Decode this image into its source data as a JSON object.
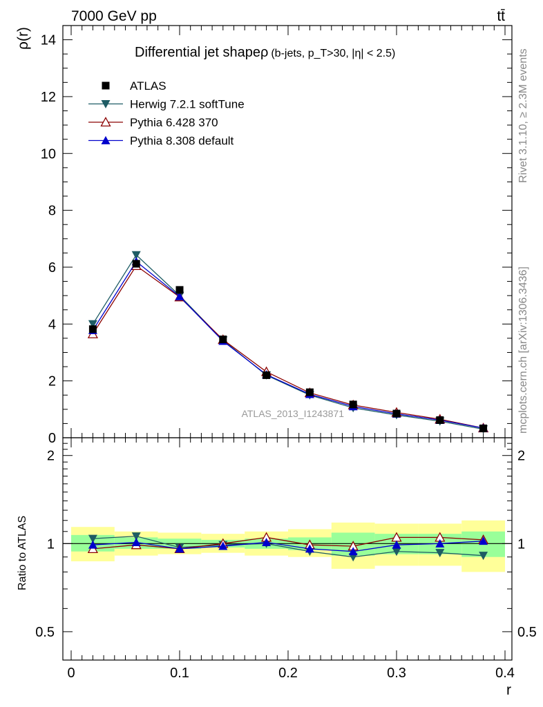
{
  "header": {
    "energy_label": "7000 GeV pp",
    "process_label": "tt̄",
    "rivet_label": "Rivet 3.1.10, ≥ 2.3M events",
    "mcplots_label": "mcplots.cern.ch [arXiv:1306.3436]",
    "analysis_label": "ATLAS_2013_I1243871"
  },
  "chart_data": [
    {
      "type": "scatter",
      "title": "Differential jet shapeρ",
      "title_detail": "(b-jets, p_T>30, |η| < 2.5)",
      "ylabel": "ρ(r)",
      "xlabel": "",
      "xlim": [
        0,
        0.4
      ],
      "ylim": [
        0,
        14.5
      ],
      "x_ticks": [],
      "y_ticks": [
        "0",
        "2",
        "4",
        "6",
        "8",
        "10",
        "12",
        "14"
      ],
      "legend_position": "top-left",
      "x": [
        0.02,
        0.06,
        0.1,
        0.14,
        0.18,
        0.22,
        0.26,
        0.3,
        0.34,
        0.38
      ],
      "series": [
        {
          "name": "ATLAS",
          "color": "#000000",
          "marker": "square",
          "values": [
            3.82,
            6.12,
            5.2,
            3.46,
            2.2,
            1.6,
            1.17,
            0.85,
            0.62,
            0.33
          ]
        },
        {
          "name": "Herwig 7.2.1 softTune",
          "color": "#1e5c64",
          "marker": "triangle-down",
          "values": [
            4.0,
            6.43,
            5.0,
            3.43,
            2.2,
            1.5,
            1.05,
            0.8,
            0.58,
            0.3
          ]
        },
        {
          "name": "Pythia 6.428 370",
          "color": "#8b0000",
          "marker": "triangle-up-open",
          "values": [
            3.65,
            6.05,
            4.95,
            3.45,
            2.32,
            1.58,
            1.15,
            0.89,
            0.65,
            0.34
          ]
        },
        {
          "name": "Pythia 8.308 default",
          "color": "#0000cc",
          "marker": "triangle-up",
          "values": [
            3.78,
            6.2,
            4.97,
            3.4,
            2.22,
            1.53,
            1.1,
            0.84,
            0.62,
            0.34
          ]
        }
      ]
    },
    {
      "type": "scatter",
      "title": "",
      "ylabel": "Ratio to ATLAS",
      "xlabel": "r",
      "xlim": [
        0,
        0.4
      ],
      "ylim": [
        0.4,
        2.3
      ],
      "y_log": true,
      "x_ticks": [
        "0",
        "0.1",
        "0.2",
        "0.3",
        "0.4"
      ],
      "y_ticks": [
        "0.5",
        "1",
        "2"
      ],
      "x": [
        0.02,
        0.06,
        0.1,
        0.14,
        0.18,
        0.22,
        0.26,
        0.3,
        0.34,
        0.38
      ],
      "bin_edges": [
        0.0,
        0.04,
        0.08,
        0.12,
        0.16,
        0.2,
        0.24,
        0.28,
        0.32,
        0.36,
        0.4
      ],
      "band_inner": [
        [
          0.94,
          1.07
        ],
        [
          0.96,
          1.05
        ],
        [
          0.96,
          1.04
        ],
        [
          0.97,
          1.03
        ],
        [
          0.96,
          1.04
        ],
        [
          0.95,
          1.05
        ],
        [
          0.91,
          1.09
        ],
        [
          0.92,
          1.08
        ],
        [
          0.92,
          1.08
        ],
        [
          0.9,
          1.1
        ]
      ],
      "band_outer": [
        [
          0.87,
          1.14
        ],
        [
          0.91,
          1.1
        ],
        [
          0.92,
          1.09
        ],
        [
          0.93,
          1.08
        ],
        [
          0.91,
          1.1
        ],
        [
          0.9,
          1.12
        ],
        [
          0.82,
          1.18
        ],
        [
          0.84,
          1.17
        ],
        [
          0.84,
          1.17
        ],
        [
          0.8,
          1.2
        ]
      ],
      "series": [
        {
          "name": "Herwig 7.2.1 softTune",
          "color": "#1e5c64",
          "marker": "triangle-down",
          "values": [
            1.04,
            1.06,
            0.97,
            0.99,
            1.0,
            0.94,
            0.9,
            0.94,
            0.93,
            0.91
          ]
        },
        {
          "name": "Pythia 6.428 370",
          "color": "#8b0000",
          "marker": "triangle-up-open",
          "values": [
            0.96,
            0.99,
            0.96,
            1.0,
            1.05,
            0.99,
            0.98,
            1.05,
            1.05,
            1.03
          ]
        },
        {
          "name": "Pythia 8.308 default",
          "color": "#0000cc",
          "marker": "triangle-up",
          "values": [
            0.99,
            1.01,
            0.96,
            0.98,
            1.01,
            0.96,
            0.94,
            0.99,
            1.0,
            1.02
          ]
        }
      ]
    }
  ]
}
